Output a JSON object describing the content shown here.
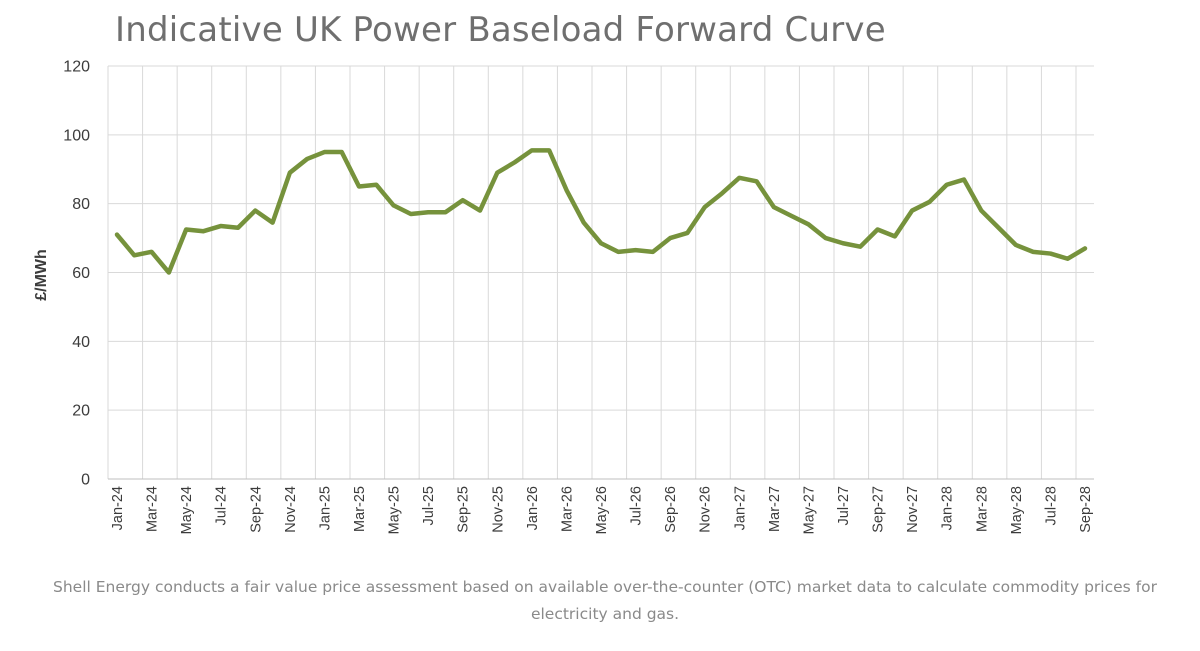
{
  "chart_data": {
    "type": "line",
    "title": "Indicative UK Power Baseload Forward Curve",
    "ylabel": "£/MWh",
    "xlabel": "",
    "ylim": [
      0,
      120
    ],
    "yticks": [
      "0",
      "20",
      "40",
      "60",
      "80",
      "100",
      "120"
    ],
    "grid": true,
    "legend": "none",
    "line_color": "#76923c",
    "x": [
      "Jan-24",
      "Feb-24",
      "Mar-24",
      "Apr-24",
      "May-24",
      "Jun-24",
      "Jul-24",
      "Aug-24",
      "Sep-24",
      "Oct-24",
      "Nov-24",
      "Dec-24",
      "Jan-25",
      "Feb-25",
      "Mar-25",
      "Apr-25",
      "May-25",
      "Jun-25",
      "Jul-25",
      "Aug-25",
      "Sep-25",
      "Oct-25",
      "Nov-25",
      "Dec-25",
      "Jan-26",
      "Feb-26",
      "Mar-26",
      "Apr-26",
      "May-26",
      "Jun-26",
      "Jul-26",
      "Aug-26",
      "Sep-26",
      "Oct-26",
      "Nov-26",
      "Dec-26",
      "Jan-27",
      "Feb-27",
      "Mar-27",
      "Apr-27",
      "May-27",
      "Jun-27",
      "Jul-27",
      "Aug-27",
      "Sep-27",
      "Oct-27",
      "Nov-27",
      "Dec-27",
      "Jan-28",
      "Feb-28",
      "Mar-28",
      "Apr-28",
      "May-28",
      "Jun-28",
      "Jul-28",
      "Aug-28",
      "Sep-28"
    ],
    "x_tick_labels": [
      "Jan-24",
      "Mar-24",
      "May-24",
      "Jul-24",
      "Sep-24",
      "Nov-24",
      "Jan-25",
      "Mar-25",
      "May-25",
      "Jul-25",
      "Sep-25",
      "Nov-25",
      "Jan-26",
      "Mar-26",
      "May-26",
      "Jul-26",
      "Sep-26",
      "Nov-26",
      "Jan-27",
      "Mar-27",
      "May-27",
      "Jul-27",
      "Sep-27",
      "Nov-27",
      "Jan-28",
      "Mar-28",
      "May-28",
      "Jul-28",
      "Sep-28"
    ],
    "series": [
      {
        "values": [
          71,
          65,
          66,
          60,
          72.5,
          72,
          73.5,
          73,
          78,
          74.5,
          89,
          93,
          95,
          95,
          85,
          85.5,
          79.5,
          77,
          77.5,
          77.5,
          81,
          78,
          89,
          92,
          95.5,
          95.5,
          84,
          74.5,
          68.5,
          66,
          66.5,
          66,
          70,
          71.5,
          79,
          83,
          87.5,
          86.5,
          79,
          76.5,
          74,
          70,
          68.5,
          67.5,
          72.5,
          70.5,
          78,
          80.5,
          85.5,
          87,
          78,
          73,
          68,
          66,
          65.5,
          64,
          67
        ]
      }
    ]
  },
  "caption": "Shell Energy conducts a fair value price assessment based on available over-the-counter (OTC) market data to calculate commodity prices for electricity and gas."
}
